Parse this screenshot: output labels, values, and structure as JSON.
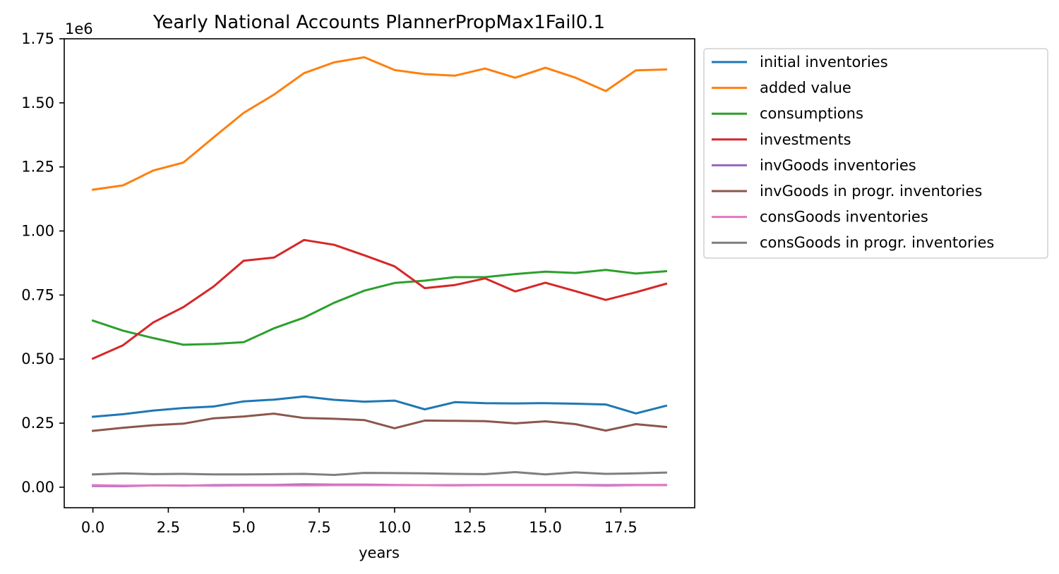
{
  "chart_data": {
    "type": "line",
    "title": "Yearly National Accounts PlannerPropMax1Fail0.1",
    "xlabel": "years",
    "ylabel": "",
    "y_offset_label": "1e6",
    "xlim": [
      -0.95,
      19.95
    ],
    "ylim": [
      -0.08,
      1.75
    ],
    "y_scale_factor": 1000000,
    "xticks": [
      0.0,
      2.5,
      5.0,
      7.5,
      10.0,
      12.5,
      15.0,
      17.5
    ],
    "xtick_labels": [
      "0.0",
      "2.5",
      "5.0",
      "7.5",
      "10.0",
      "12.5",
      "15.0",
      "17.5"
    ],
    "yticks": [
      0.0,
      0.25,
      0.5,
      0.75,
      1.0,
      1.25,
      1.5,
      1.75
    ],
    "ytick_labels": [
      "0.00",
      "0.25",
      "0.50",
      "0.75",
      "1.00",
      "1.25",
      "1.50",
      "1.75"
    ],
    "grid": false,
    "legend_position": "outside-right",
    "x": [
      0,
      1,
      2,
      3,
      4,
      5,
      6,
      7,
      8,
      9,
      10,
      11,
      12,
      13,
      14,
      15,
      16,
      17,
      18,
      19
    ],
    "series": [
      {
        "name": "initial inventories",
        "color": "#1f77b4",
        "values": [
          275000,
          285000,
          299000,
          309000,
          315000,
          335000,
          342000,
          354000,
          341000,
          334000,
          338000,
          304000,
          332000,
          328000,
          327000,
          328000,
          326000,
          323000,
          288000,
          318000
        ]
      },
      {
        "name": "added value",
        "color": "#ff7f0e",
        "values": [
          1161000,
          1178000,
          1236000,
          1267000,
          1365000,
          1461000,
          1532000,
          1616000,
          1658000,
          1678000,
          1628000,
          1612000,
          1606000,
          1634000,
          1598000,
          1637000,
          1598000,
          1546000,
          1627000,
          1630000
        ]
      },
      {
        "name": "consumptions",
        "color": "#2ca02c",
        "values": [
          650000,
          611000,
          582000,
          556000,
          559000,
          566000,
          620000,
          662000,
          720000,
          767000,
          797000,
          806000,
          820000,
          820000,
          832000,
          841000,
          836000,
          848000,
          834000,
          843000
        ]
      },
      {
        "name": "investments",
        "color": "#d62728",
        "values": [
          502000,
          554000,
          643000,
          703000,
          783000,
          884000,
          896000,
          965000,
          946000,
          905000,
          862000,
          777000,
          789000,
          815000,
          764000,
          798000,
          765000,
          731000,
          761000,
          794000
        ]
      },
      {
        "name": "invGoods inventories",
        "color": "#9467bd",
        "values": [
          5000,
          4000,
          7000,
          6000,
          8000,
          9000,
          9000,
          11000,
          10000,
          10000,
          9000,
          8000,
          8000,
          9000,
          9000,
          9000,
          9000,
          8000,
          9000,
          9000
        ]
      },
      {
        "name": "invGoods in progr. inventories",
        "color": "#8c564b",
        "values": [
          220000,
          232000,
          242000,
          248000,
          269000,
          276000,
          287000,
          270000,
          267000,
          262000,
          230000,
          260000,
          259000,
          258000,
          249000,
          257000,
          246000,
          221000,
          246000,
          235000
        ]
      },
      {
        "name": "consGoods inventories",
        "color": "#e377c2",
        "values": [
          8000,
          6000,
          7000,
          7000,
          6000,
          7000,
          7000,
          7000,
          8000,
          8000,
          8000,
          8000,
          7000,
          8000,
          8000,
          8000,
          8000,
          6000,
          8000,
          8000
        ]
      },
      {
        "name": "consGoods in progr. inventories",
        "color": "#7f7f7f",
        "values": [
          50000,
          54000,
          51000,
          52000,
          50000,
          50000,
          51000,
          52000,
          48000,
          56000,
          55000,
          54000,
          52000,
          51000,
          59000,
          50000,
          58000,
          52000,
          54000,
          57000
        ]
      }
    ]
  }
}
